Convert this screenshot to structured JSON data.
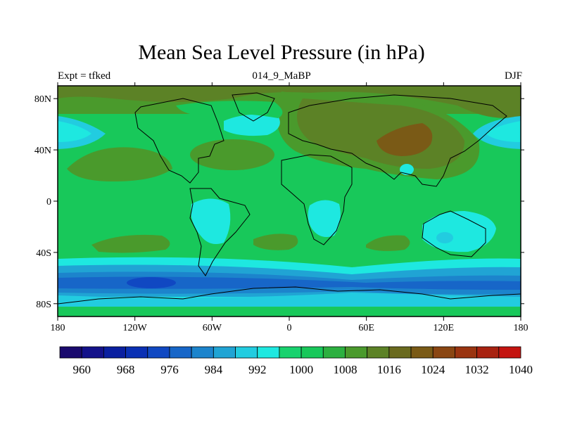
{
  "chart_data": {
    "type": "heatmap",
    "title": "Mean Sea Level Pressure (in hPa)",
    "subtitle_left": "Expt = tfked",
    "subtitle_center": "014_9_MaBP",
    "subtitle_right": "DJF",
    "units": "hPa",
    "x_ticks": [
      "180",
      "120W",
      "60W",
      "0",
      "60E",
      "120E",
      "180"
    ],
    "y_ticks": [
      "80N",
      "40N",
      "0",
      "40S",
      "80S"
    ],
    "xlim": [
      -180,
      180
    ],
    "ylim": [
      -90,
      90
    ],
    "colorbar": {
      "levels": [
        960,
        964,
        968,
        972,
        976,
        980,
        984,
        988,
        992,
        996,
        1000,
        1004,
        1008,
        1012,
        1016,
        1020,
        1024,
        1028,
        1032,
        1036,
        1040
      ],
      "labels": [
        "960",
        "968",
        "976",
        "984",
        "992",
        "1000",
        "1008",
        "1016",
        "1024",
        "1032",
        "1040"
      ],
      "colors": [
        "#1a0a6e",
        "#14128a",
        "#0a1fa0",
        "#0a30b4",
        "#1048c2",
        "#1766c8",
        "#1c84cc",
        "#20a4d4",
        "#22cce0",
        "#1ee8e0",
        "#18d26e",
        "#18c85a",
        "#2cb040",
        "#4a9a2c",
        "#5c8226",
        "#6a6a1e",
        "#7a5a16",
        "#8a4612",
        "#9a3410",
        "#a82210",
        "#c41410"
      ]
    },
    "grid": false
  }
}
